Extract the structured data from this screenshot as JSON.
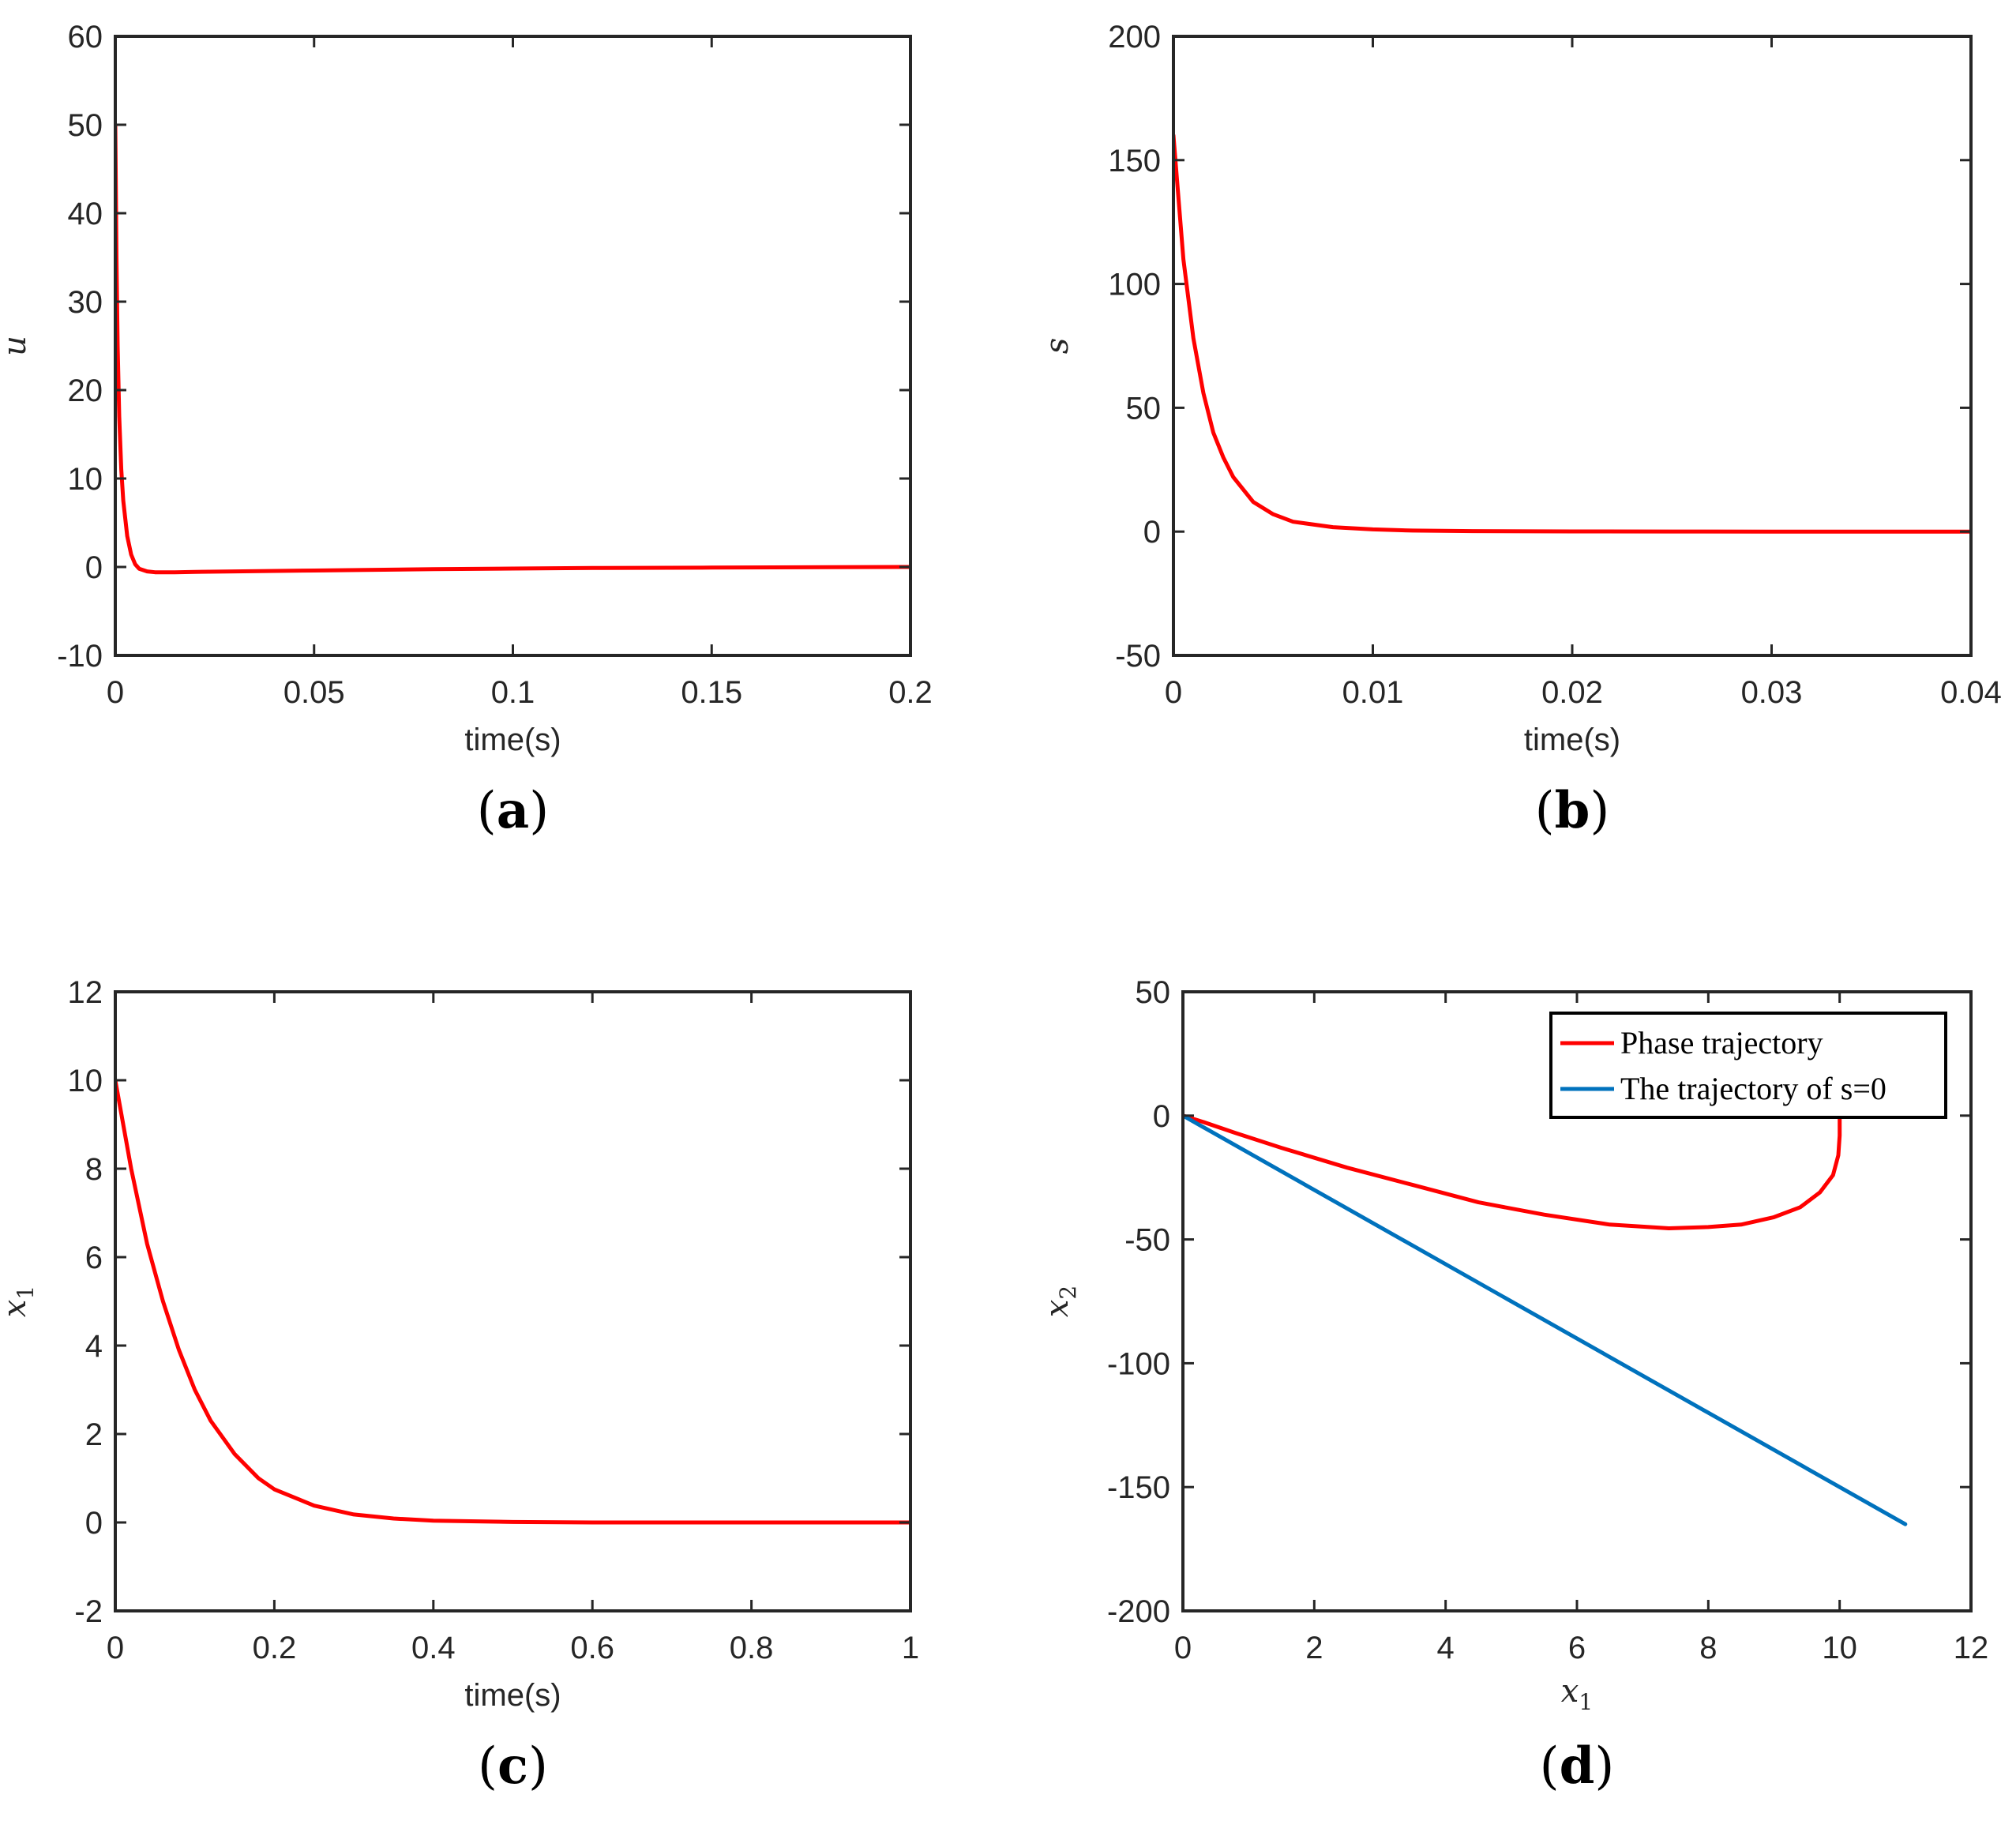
{
  "chart_data": [
    {
      "id": "a",
      "type": "line",
      "panel_label": "a",
      "xlabel": "time(s)",
      "ylabel": "u",
      "ylabel_math": true,
      "xlim": [
        0,
        0.2
      ],
      "ylim": [
        -10,
        60
      ],
      "xticks": [
        0,
        0.05,
        0.1,
        0.15,
        0.2
      ],
      "xtick_labels": [
        "0",
        "0.05",
        "0.1",
        "0.15",
        "0.2"
      ],
      "yticks": [
        -10,
        0,
        10,
        20,
        30,
        40,
        50,
        60
      ],
      "ytick_labels": [
        "-10",
        "0",
        "10",
        "20",
        "30",
        "40",
        "50",
        "60"
      ],
      "series": [
        {
          "name": "u",
          "color": "#ff0000",
          "x": [
            0,
            0.0003,
            0.0006,
            0.001,
            0.0015,
            0.002,
            0.003,
            0.004,
            0.005,
            0.006,
            0.008,
            0.01,
            0.015,
            0.02,
            0.03,
            0.05,
            0.08,
            0.1,
            0.12,
            0.15,
            0.18,
            0.2
          ],
          "y": [
            50,
            35,
            25,
            17,
            11,
            7.5,
            3.5,
            1.4,
            0.3,
            -0.2,
            -0.5,
            -0.6,
            -0.6,
            -0.55,
            -0.5,
            -0.4,
            -0.25,
            -0.18,
            -0.12,
            -0.07,
            -0.03,
            0
          ]
        }
      ]
    },
    {
      "id": "b",
      "type": "line",
      "panel_label": "b",
      "xlabel": "time(s)",
      "ylabel": "s",
      "ylabel_math": true,
      "xlim": [
        0,
        0.04
      ],
      "ylim": [
        -50,
        200
      ],
      "xticks": [
        0,
        0.01,
        0.02,
        0.03,
        0.04
      ],
      "xtick_labels": [
        "0",
        "0.01",
        "0.02",
        "0.03",
        "0.04"
      ],
      "yticks": [
        -50,
        0,
        50,
        100,
        150,
        200
      ],
      "ytick_labels": [
        "-50",
        "0",
        "50",
        "100",
        "150",
        "200"
      ],
      "series": [
        {
          "name": "s",
          "color": "#ff0000",
          "x": [
            0,
            0.0005,
            0.001,
            0.0015,
            0.002,
            0.0025,
            0.003,
            0.004,
            0.005,
            0.006,
            0.008,
            0.01,
            0.012,
            0.015,
            0.02,
            0.025,
            0.03,
            0.035,
            0.04
          ],
          "y": [
            160,
            110,
            78,
            56,
            40,
            30,
            22,
            12,
            7,
            4,
            1.8,
            0.9,
            0.4,
            0.2,
            0.05,
            0.02,
            0,
            0,
            0
          ]
        }
      ]
    },
    {
      "id": "c",
      "type": "line",
      "panel_label": "c",
      "xlabel": "time(s)",
      "ylabel": "x",
      "ylabel_sub": "1",
      "ylabel_math": true,
      "xlim": [
        0,
        1
      ],
      "ylim": [
        -2,
        12
      ],
      "xticks": [
        0,
        0.2,
        0.4,
        0.6,
        0.8,
        1
      ],
      "xtick_labels": [
        "0",
        "0.2",
        "0.4",
        "0.6",
        "0.8",
        "1"
      ],
      "yticks": [
        -2,
        0,
        2,
        4,
        6,
        8,
        10,
        12
      ],
      "ytick_labels": [
        "-2",
        "0",
        "2",
        "4",
        "6",
        "8",
        "10",
        "12"
      ],
      "series": [
        {
          "name": "x1",
          "color": "#ff0000",
          "x": [
            0,
            0.02,
            0.04,
            0.06,
            0.08,
            0.1,
            0.12,
            0.15,
            0.18,
            0.2,
            0.25,
            0.3,
            0.35,
            0.4,
            0.5,
            0.6,
            0.8,
            1.0
          ],
          "y": [
            10,
            8.0,
            6.3,
            5.0,
            3.9,
            3.0,
            2.3,
            1.55,
            1.0,
            0.75,
            0.38,
            0.18,
            0.09,
            0.04,
            0.01,
            0.0,
            0.0,
            0.0
          ]
        }
      ]
    },
    {
      "id": "d",
      "type": "line",
      "panel_label": "d",
      "xlabel": "x",
      "xlabel_sub": "1",
      "xlabel_math": true,
      "ylabel": "x",
      "ylabel_sub": "2",
      "ylabel_math": true,
      "xlim": [
        0,
        12
      ],
      "ylim": [
        -200,
        50
      ],
      "xticks": [
        0,
        2,
        4,
        6,
        8,
        10,
        12
      ],
      "xtick_labels": [
        "0",
        "2",
        "4",
        "6",
        "8",
        "10",
        "12"
      ],
      "yticks": [
        -200,
        -150,
        -100,
        -50,
        0,
        50
      ],
      "ytick_labels": [
        "-200",
        "-150",
        "-100",
        "-50",
        "0",
        "50"
      ],
      "legend_position": "top-right",
      "series": [
        {
          "name": "Phase trajectory",
          "color": "#ff0000",
          "x": [
            10,
            10,
            9.98,
            9.9,
            9.7,
            9.4,
            9.0,
            8.5,
            8.0,
            7.4,
            6.5,
            5.5,
            4.5,
            3.5,
            2.5,
            1.5,
            0.8,
            0.3,
            0
          ],
          "y": [
            0,
            -8,
            -16,
            -24,
            -31,
            -37,
            -41,
            -44,
            -45,
            -45.5,
            -44,
            -40,
            -35,
            -28,
            -21,
            -13,
            -7,
            -2.5,
            0
          ]
        },
        {
          "name": "The trajectory of s=0",
          "color": "#0072bd",
          "x": [
            0,
            11
          ],
          "y": [
            0,
            -165
          ]
        }
      ]
    }
  ]
}
